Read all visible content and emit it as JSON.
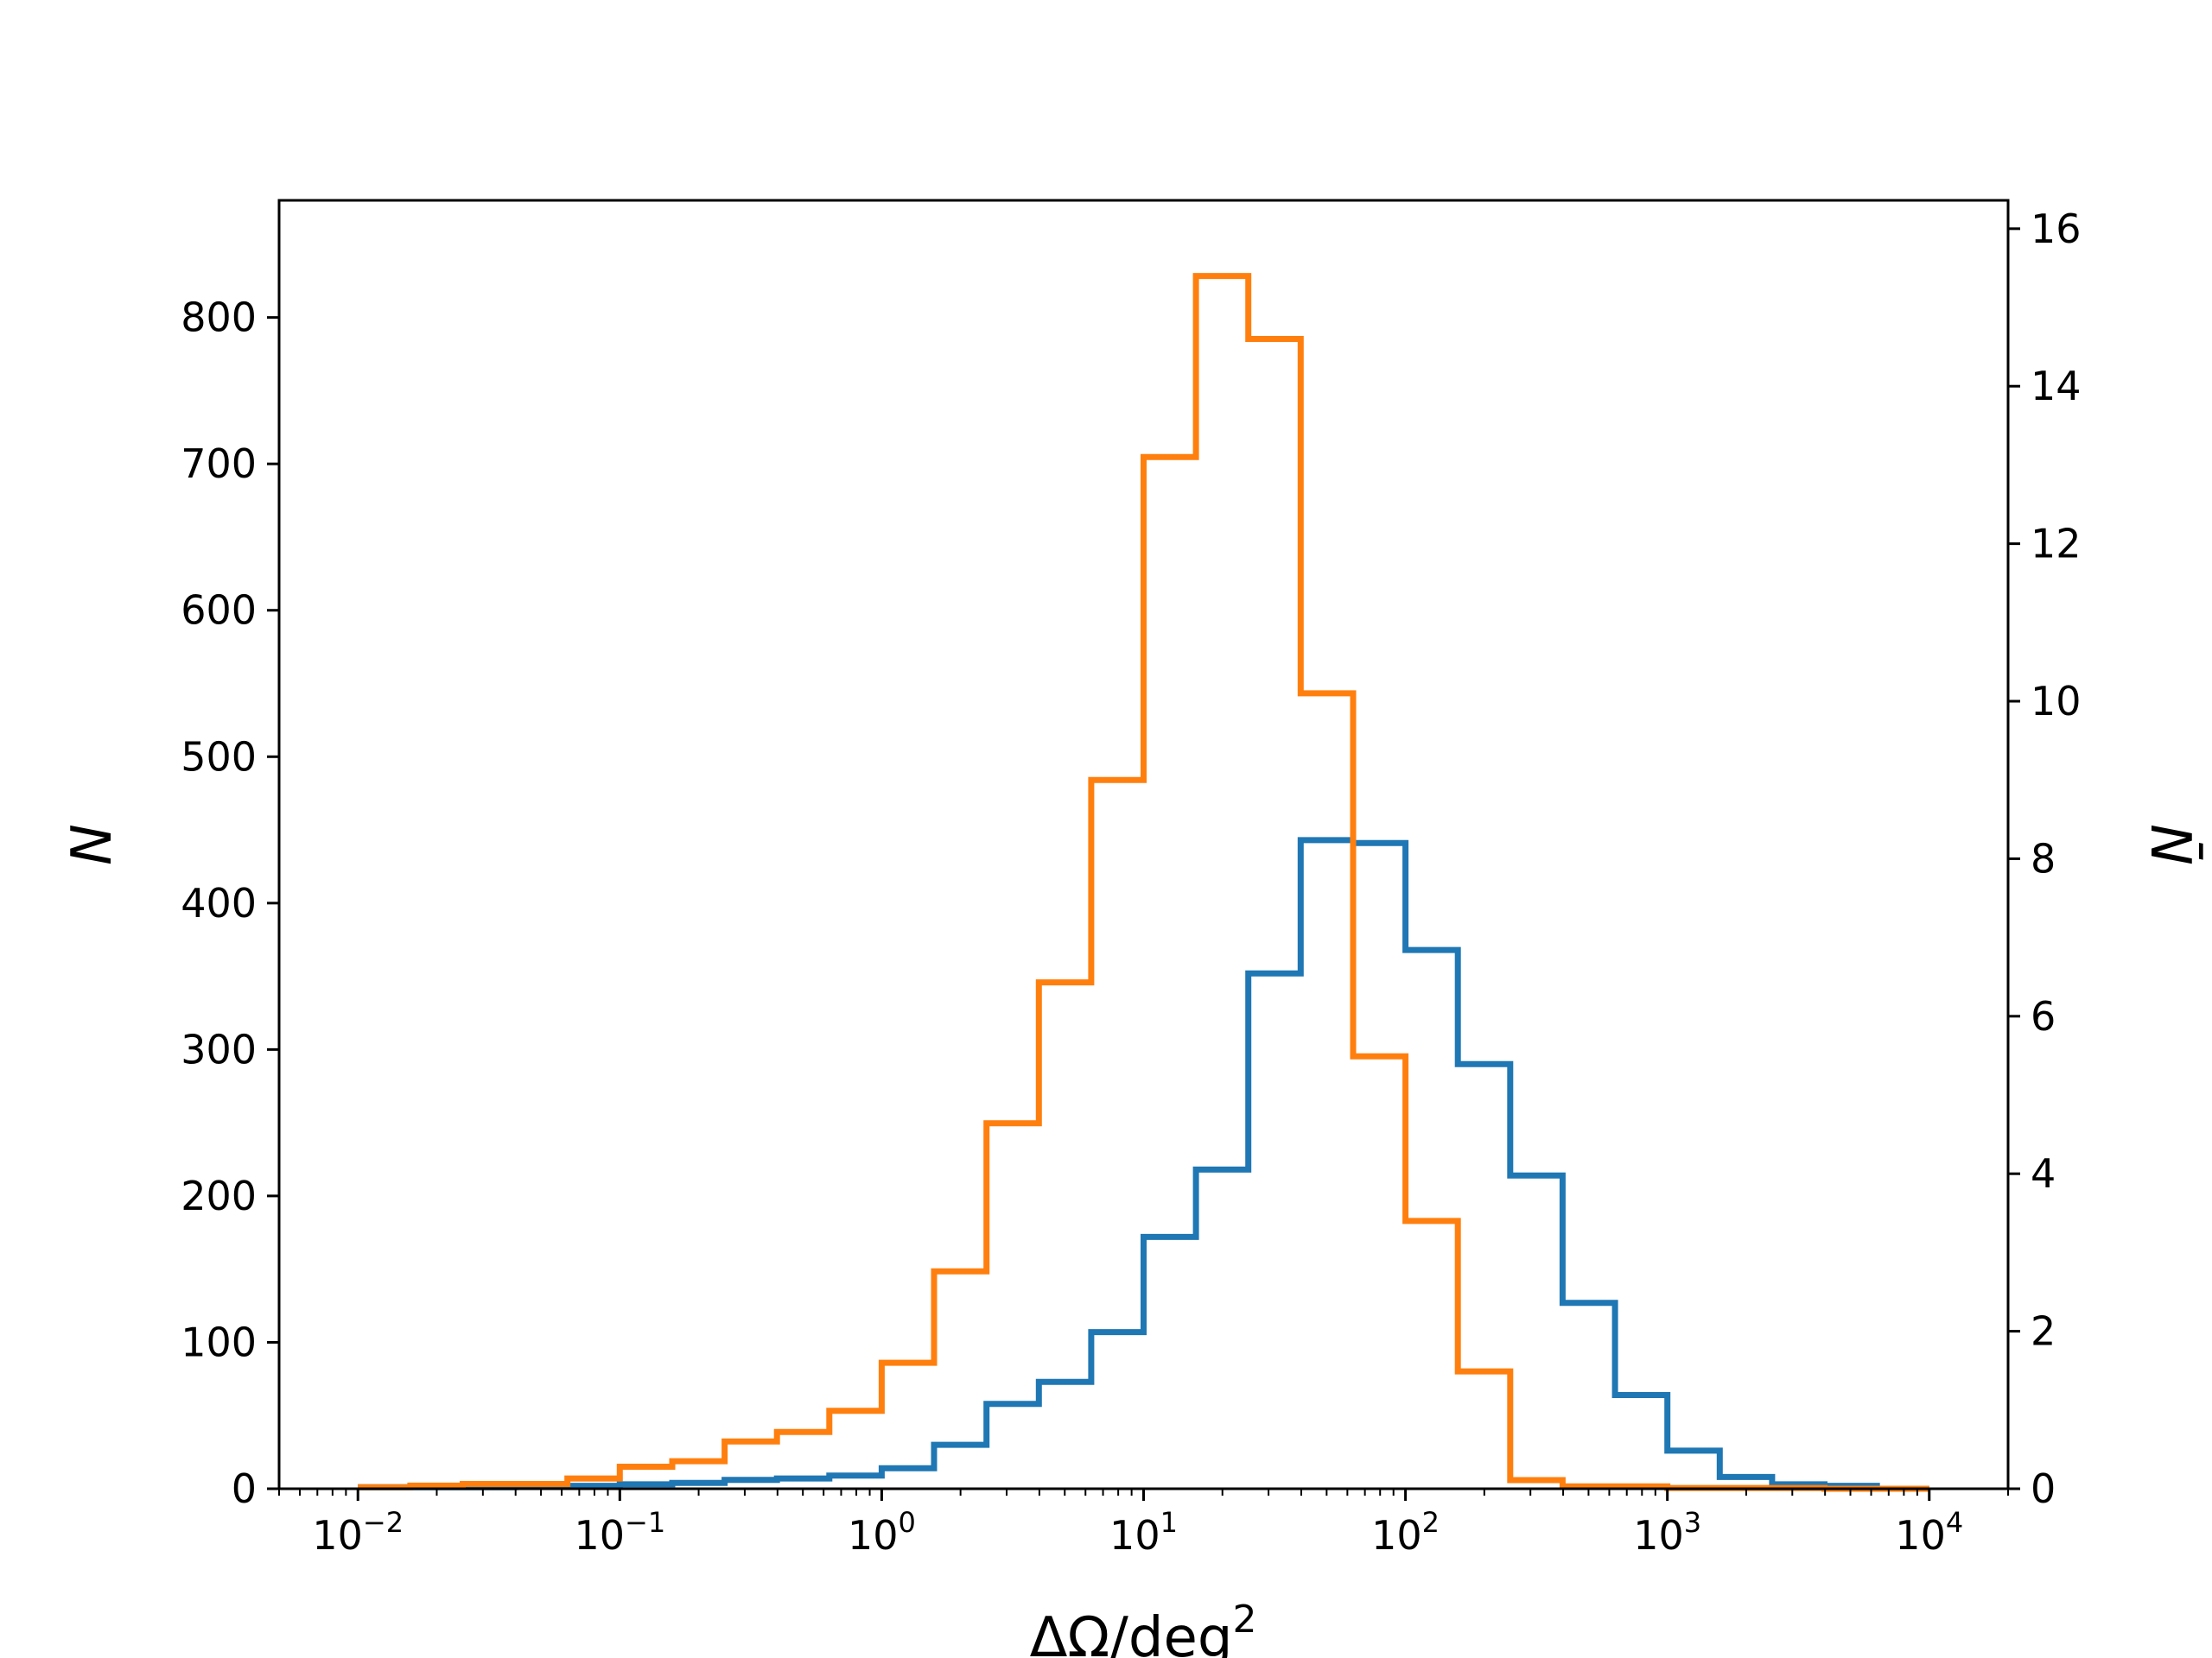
{
  "chart_data": {
    "type": "step-histogram",
    "xlabel": "ΔΩ/deg²",
    "ylabel": "N",
    "y2label": "N̄",
    "xscale": "log",
    "xlim": [
      0.005,
      20000
    ],
    "ylim": [
      0,
      880
    ],
    "y2lim": [
      0,
      16.36
    ],
    "x_ticks": [
      {
        "value": 0.01,
        "base": "10",
        "exp": "−2"
      },
      {
        "value": 0.1,
        "base": "10",
        "exp": "−1"
      },
      {
        "value": 1,
        "base": "10",
        "exp": "0"
      },
      {
        "value": 10,
        "base": "10",
        "exp": "1"
      },
      {
        "value": 100,
        "base": "10",
        "exp": "2"
      },
      {
        "value": 1000,
        "base": "10",
        "exp": "3"
      },
      {
        "value": 10000,
        "base": "10",
        "exp": "4"
      }
    ],
    "y_ticks": [
      0,
      100,
      200,
      300,
      400,
      500,
      600,
      700,
      800
    ],
    "y2_ticks": [
      0,
      2,
      4,
      6,
      8,
      10,
      12,
      14,
      16
    ],
    "bin_edges": [
      0.01,
      0.01585,
      0.02512,
      0.03981,
      0.0631,
      0.1,
      0.1585,
      0.2512,
      0.3981,
      0.631,
      1,
      1.585,
      2.512,
      3.981,
      6.31,
      10,
      15.85,
      25.12,
      39.81,
      63.1,
      100,
      158.5,
      251.2,
      398.1,
      631,
      1000,
      1585,
      2512,
      3981,
      6310,
      10000
    ],
    "series": [
      {
        "axis": "left",
        "color": "#1f77b4",
        "values": [
          1,
          1,
          1,
          2,
          2,
          3,
          4,
          6,
          7,
          9,
          14,
          30,
          58,
          73,
          107,
          172,
          218,
          352,
          443,
          441,
          368,
          290,
          214,
          127,
          64,
          26,
          8,
          3,
          2,
          0
        ]
      },
      {
        "axis": "right",
        "color": "#ff7f0e",
        "values": [
          0.02,
          0.04,
          0.06,
          0.06,
          0.13,
          0.28,
          0.35,
          0.6,
          0.72,
          0.99,
          1.6,
          2.76,
          4.64,
          6.43,
          9.0,
          13.1,
          15.4,
          14.6,
          10.1,
          5.49,
          3.4,
          1.49,
          0.11,
          0.03,
          0.03,
          0.01,
          0.01,
          0.01,
          0.0,
          0.0
        ]
      }
    ]
  }
}
